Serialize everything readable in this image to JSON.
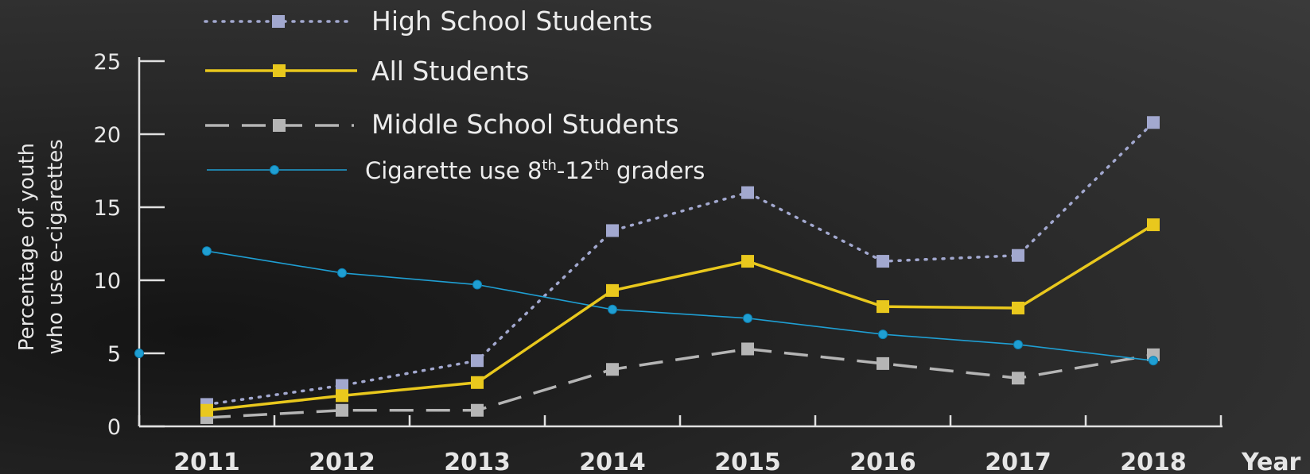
{
  "chart_data": {
    "type": "line",
    "x": [
      "2011",
      "2012",
      "2013",
      "2014",
      "2015",
      "2016",
      "2017",
      "2018"
    ],
    "xlabel": "Year",
    "ylabel_line1": "Percentage of youth",
    "ylabel_line2": "who use e-cigarettes",
    "ylim": [
      0,
      25
    ],
    "yticks": [
      "0",
      "5",
      "10",
      "15",
      "20",
      "25"
    ],
    "legend_position": "top-left",
    "series": [
      {
        "name": "High School Students",
        "style": "dotted",
        "marker": "square",
        "color": "#a2a8cf",
        "values": [
          1.5,
          2.8,
          4.5,
          13.4,
          16.0,
          11.3,
          11.7,
          20.8
        ]
      },
      {
        "name": "All Students",
        "style": "solid",
        "marker": "square",
        "color": "#e9c81d",
        "values": [
          1.1,
          2.1,
          3.0,
          9.3,
          11.3,
          8.2,
          8.1,
          13.8
        ]
      },
      {
        "name": "Middle School Students",
        "style": "dashed",
        "marker": "square",
        "color": "#b5b5b5",
        "values": [
          0.6,
          1.1,
          1.1,
          3.9,
          5.3,
          4.3,
          3.3,
          4.9
        ]
      },
      {
        "name_prefix": "Cigarette use 8",
        "name_sup1": "th",
        "name_mid": "-12",
        "name_sup2": "th",
        "name_suffix": " graders",
        "style": "solid-thin",
        "marker": "circle",
        "color": "#1f9fd3",
        "values": [
          12.0,
          10.5,
          9.7,
          8.0,
          7.4,
          6.3,
          5.6,
          4.5
        ]
      }
    ],
    "extra_point": {
      "series": "Cigarette use",
      "value": 5.0,
      "note": "point on y-axis"
    }
  }
}
